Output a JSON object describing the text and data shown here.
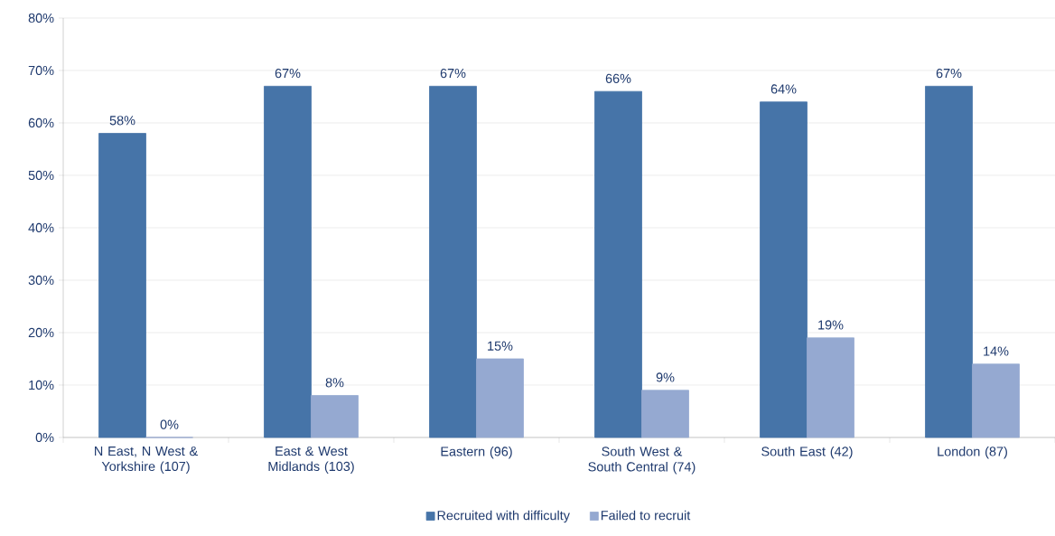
{
  "chart_data": {
    "type": "bar",
    "categories": [
      "N East, N West & Yorkshire (107)",
      "East & West Midlands (103)",
      "Eastern (96)",
      "South West & South Central (74)",
      "South East (42)",
      "London (87)"
    ],
    "series": [
      {
        "name": "Recruited with difficulty",
        "color": "#4674a8",
        "values": [
          58,
          67,
          67,
          66,
          64,
          67
        ],
        "value_labels": [
          "58%",
          "67%",
          "67%",
          "66%",
          "64%",
          "67%"
        ]
      },
      {
        "name": "Failed to recruit",
        "color": "#95a9d1",
        "values": [
          0,
          8,
          15,
          9,
          19,
          14
        ],
        "value_labels": [
          "0%",
          "8%",
          "15%",
          "9%",
          "19%",
          "14%"
        ]
      }
    ],
    "ylim": [
      0,
      80
    ],
    "yticks": [
      {
        "value": 0,
        "label": "0%"
      },
      {
        "value": 10,
        "label": "10%"
      },
      {
        "value": 20,
        "label": "20%"
      },
      {
        "value": 30,
        "label": "30%"
      },
      {
        "value": 40,
        "label": "40%"
      },
      {
        "value": 50,
        "label": "50%"
      },
      {
        "value": 60,
        "label": "60%"
      },
      {
        "value": 70,
        "label": "70%"
      },
      {
        "value": 80,
        "label": "80%"
      }
    ],
    "grid": "y",
    "legend": "bottom"
  }
}
